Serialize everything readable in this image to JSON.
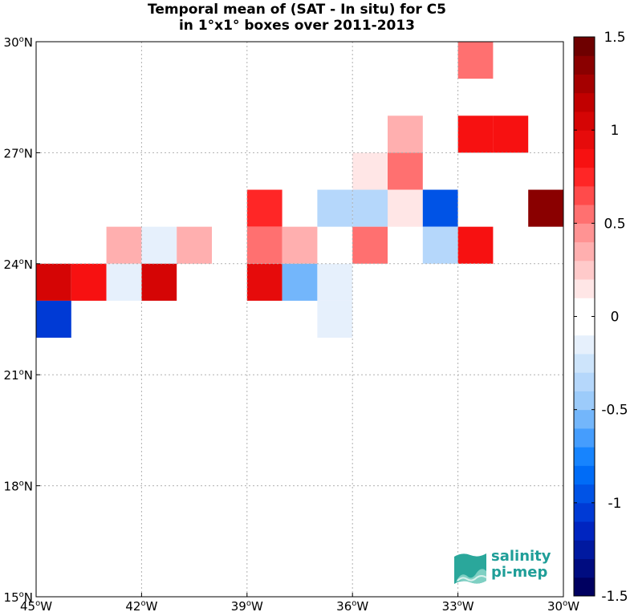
{
  "title": {
    "line1": "Temporal mean of (SAT - In situ) for C5",
    "line2": "in 1°x1° boxes over 2011-2013"
  },
  "logo": {
    "line1": "salinity",
    "line2": "pi-mep"
  },
  "chart_data": {
    "type": "heatmap",
    "title": "Temporal mean of (SAT - In situ) for C5 in 1°x1° boxes over 2011-2013",
    "x_ticks": [
      {
        "value": -45,
        "deg": "45",
        "hemi": "W"
      },
      {
        "value": -42,
        "deg": "42",
        "hemi": "W"
      },
      {
        "value": -39,
        "deg": "39",
        "hemi": "W"
      },
      {
        "value": -36,
        "deg": "36",
        "hemi": "W"
      },
      {
        "value": -33,
        "deg": "33",
        "hemi": "W"
      },
      {
        "value": -30,
        "deg": "30",
        "hemi": "W"
      }
    ],
    "y_ticks": [
      {
        "value": 30,
        "deg": "30",
        "hemi": "N"
      },
      {
        "value": 27,
        "deg": "27",
        "hemi": "N"
      },
      {
        "value": 24,
        "deg": "24",
        "hemi": "N"
      },
      {
        "value": 21,
        "deg": "21",
        "hemi": "N"
      },
      {
        "value": 18,
        "deg": "18",
        "hemi": "N"
      },
      {
        "value": 15,
        "deg": "15",
        "hemi": "N"
      }
    ],
    "xlim": [
      -45,
      -30
    ],
    "ylim": [
      15,
      30
    ],
    "grid": true,
    "colorbar": {
      "vmin": -1.5,
      "vmax": 1.5,
      "levels": 30,
      "ticks": [
        "1.5",
        "1",
        "0.5",
        "0",
        "-0.5",
        "-1",
        "-1.5"
      ],
      "tick_values": [
        1.5,
        1,
        0.5,
        0,
        -0.5,
        -1,
        -1.5
      ]
    },
    "cells": [
      {
        "lon": -33,
        "lat": 29,
        "value": 0.55
      },
      {
        "lon": -35,
        "lat": 27,
        "value": 0.3
      },
      {
        "lon": -33,
        "lat": 27,
        "value": 0.8
      },
      {
        "lon": -32,
        "lat": 27,
        "value": 0.8
      },
      {
        "lon": -36,
        "lat": 26,
        "value": 0.15
      },
      {
        "lon": -35,
        "lat": 26,
        "value": 0.55
      },
      {
        "lon": -39,
        "lat": 25,
        "value": 0.75
      },
      {
        "lon": -37,
        "lat": 25,
        "value": -0.4
      },
      {
        "lon": -36,
        "lat": 25,
        "value": -0.3
      },
      {
        "lon": -35,
        "lat": 25,
        "value": 0.15
      },
      {
        "lon": -34,
        "lat": 25,
        "value": -0.9
      },
      {
        "lon": -31,
        "lat": 25,
        "value": 1.35
      },
      {
        "lon": -43,
        "lat": 24,
        "value": 0.3
      },
      {
        "lon": -42,
        "lat": 24,
        "value": -0.15
      },
      {
        "lon": -41,
        "lat": 24,
        "value": 0.3
      },
      {
        "lon": -39,
        "lat": 24,
        "value": 0.55
      },
      {
        "lon": -38,
        "lat": 24,
        "value": 0.3
      },
      {
        "lon": -36,
        "lat": 24,
        "value": 0.55
      },
      {
        "lon": -34,
        "lat": 24,
        "value": -0.4
      },
      {
        "lon": -33,
        "lat": 24,
        "value": 0.85
      },
      {
        "lon": -45,
        "lat": 23,
        "value": 1.0
      },
      {
        "lon": -44,
        "lat": 23,
        "value": 0.8
      },
      {
        "lon": -43,
        "lat": 23,
        "value": -0.15
      },
      {
        "lon": -42,
        "lat": 23,
        "value": 1.05
      },
      {
        "lon": -39,
        "lat": 23,
        "value": 0.95
      },
      {
        "lon": -38,
        "lat": 23,
        "value": -0.6
      },
      {
        "lon": -37,
        "lat": 23,
        "value": -0.15
      },
      {
        "lon": -37,
        "lat": 22,
        "value": -0.15
      },
      {
        "lon": -45,
        "lat": 22,
        "value": -1.05
      }
    ]
  }
}
